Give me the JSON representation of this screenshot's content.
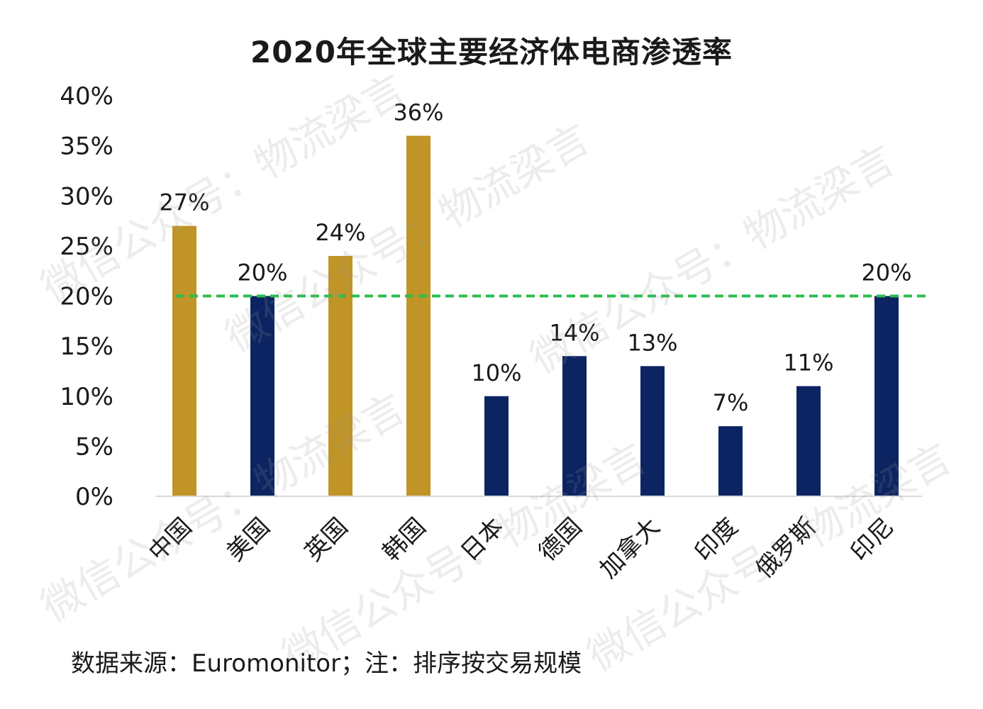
{
  "chart_data": {
    "type": "bar",
    "title": "2020年全球主要经济体电商渗透率",
    "categories": [
      "中国",
      "美国",
      "英国",
      "韩国",
      "日本",
      "德国",
      "加拿大",
      "印度",
      "俄罗斯",
      "印尼"
    ],
    "values": [
      27,
      20,
      24,
      36,
      10,
      14,
      13,
      7,
      11,
      20
    ],
    "data_labels": [
      "27%",
      "20%",
      "24%",
      "36%",
      "10%",
      "14%",
      "13%",
      "7%",
      "11%",
      "20%"
    ],
    "bar_colors": [
      "#c09426",
      "#0c2461",
      "#c09426",
      "#c09426",
      "#0c2461",
      "#0c2461",
      "#0c2461",
      "#0c2461",
      "#0c2461",
      "#0c2461"
    ],
    "ylim": [
      0,
      40
    ],
    "yticks": [
      "0%",
      "5%",
      "10%",
      "15%",
      "20%",
      "25%",
      "30%",
      "35%",
      "40%"
    ],
    "reference_line": {
      "value": 20,
      "color": "#2ebd4e",
      "style": "dashed"
    },
    "grid": false,
    "legend": "none"
  },
  "footer": {
    "source_note": "数据来源：Euromonitor；注：排序按交易规模"
  },
  "watermarks": [
    "微信公众号：物流梁言",
    "微信公众号：物流梁言",
    "微信公众号：物流梁言",
    "微信公众号：物流梁言",
    "微信公众号：物流梁言",
    "微信公众号：物流梁言"
  ],
  "colors": {
    "highlight_bar": "#c09426",
    "default_bar": "#0c2461",
    "reference_line": "#2ebd4e"
  }
}
